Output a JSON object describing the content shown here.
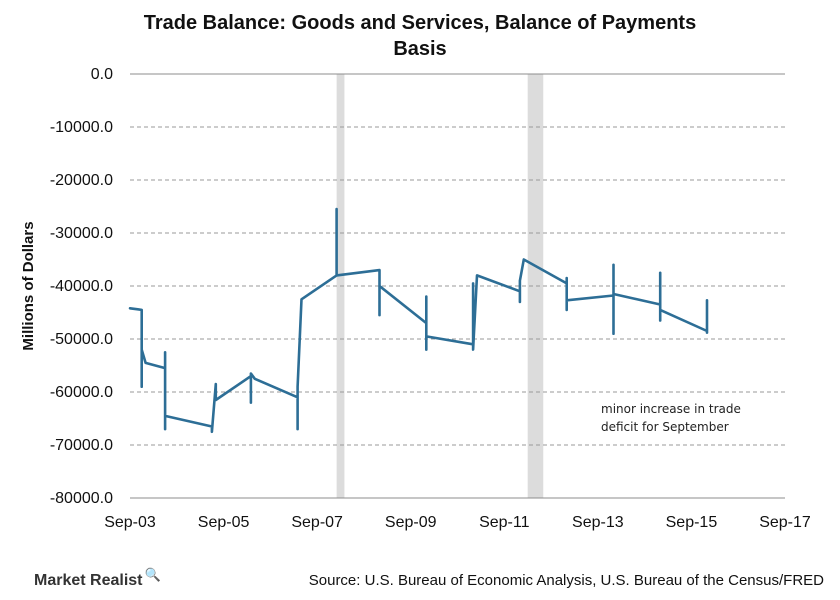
{
  "chart_data": {
    "type": "line",
    "title_lines": [
      "Trade Balance:  Goods  and  Services,  Balance  of  Payments",
      "Basis"
    ],
    "ylabel": "Millions of Dollars",
    "ylim": [
      -80000,
      0
    ],
    "yticks": [
      0,
      -10000,
      -20000,
      -30000,
      -40000,
      -50000,
      -60000,
      -70000,
      -80000
    ],
    "ytick_labels": [
      "0.0",
      "-10000.0",
      "-20000.0",
      "-30000.0",
      "-40000.0",
      "-50000.0",
      "-60000.0",
      "-70000.0",
      "-80000.0"
    ],
    "xlim": [
      "2003-09",
      "2017-09"
    ],
    "xticks": [
      "2003-09",
      "2005-09",
      "2007-09",
      "2009-09",
      "2011-09",
      "2013-09",
      "2015-09",
      "2017-09"
    ],
    "xtick_labels": [
      "Sep-03",
      "Sep-05",
      "Sep-07",
      "Sep-09",
      "Sep-11",
      "Sep-13",
      "Sep-15",
      "Sep-17"
    ],
    "grid": "horizontal-dashed",
    "line_color": "#2d6e96",
    "shading_color": "#dcdcdc",
    "shaded_periods": [
      [
        "2008-02",
        "2008-04"
      ],
      [
        "2012-03",
        "2012-07"
      ]
    ],
    "annotation": [
      "minor increase in trade",
      "deficit for September"
    ],
    "series": [
      {
        "points": [
          [
            "2003-09",
            -44200
          ],
          [
            "2003-11",
            -44400
          ],
          [
            "2003-12",
            -44500
          ],
          [
            "2003-12",
            -59000
          ],
          [
            "2003-12",
            -52000
          ],
          [
            "2004-01",
            -54500
          ],
          [
            "2004-06",
            -55500
          ],
          [
            "2004-06",
            -52500
          ],
          [
            "2004-06",
            -67000
          ],
          [
            "2004-06",
            -64500
          ],
          [
            "2005-06",
            -66500
          ],
          [
            "2005-06",
            -67500
          ],
          [
            "2005-07",
            -58500
          ],
          [
            "2005-07",
            -61500
          ],
          [
            "2006-04",
            -57000
          ],
          [
            "2006-04",
            -62000
          ],
          [
            "2006-04",
            -56500
          ],
          [
            "2006-05",
            -57500
          ],
          [
            "2007-04",
            -61000
          ],
          [
            "2007-04",
            -67000
          ],
          [
            "2007-04",
            -59000
          ],
          [
            "2007-05",
            -42500
          ],
          [
            "2008-02",
            -38000
          ],
          [
            "2008-02",
            -25500
          ],
          [
            "2008-02",
            -38000
          ],
          [
            "2009-01",
            -37000
          ],
          [
            "2009-01",
            -45500
          ],
          [
            "2009-01",
            -40000
          ],
          [
            "2010-01",
            -47000
          ],
          [
            "2010-01",
            -42000
          ],
          [
            "2010-01",
            -52000
          ],
          [
            "2010-01",
            -49500
          ],
          [
            "2011-01",
            -51000
          ],
          [
            "2011-01",
            -39500
          ],
          [
            "2011-01",
            -52000
          ],
          [
            "2011-02",
            -38000
          ],
          [
            "2012-01",
            -41000
          ],
          [
            "2012-01",
            -43000
          ],
          [
            "2012-01",
            -39000
          ],
          [
            "2012-02",
            -35000
          ],
          [
            "2013-01",
            -39500
          ],
          [
            "2013-01",
            -38500
          ],
          [
            "2013-01",
            -44500
          ],
          [
            "2013-01",
            -42700
          ],
          [
            "2014-01",
            -41800
          ],
          [
            "2014-01",
            -49000
          ],
          [
            "2014-01",
            -36000
          ],
          [
            "2014-01",
            -41500
          ],
          [
            "2015-01",
            -43500
          ],
          [
            "2015-01",
            -37500
          ],
          [
            "2015-01",
            -46500
          ],
          [
            "2015-01",
            -44500
          ],
          [
            "2016-01",
            -48500
          ],
          [
            "2016-01",
            -48800
          ],
          [
            "2016-01",
            -43500
          ],
          [
            "2016-01",
            -42700
          ]
        ]
      }
    ]
  },
  "branding": {
    "logo_text": "Market Realist",
    "logo_glyph": "🔍"
  },
  "source_text": "Source: U.S. Bureau of Economic Analysis, U.S. Bureau of the Census/FRED"
}
